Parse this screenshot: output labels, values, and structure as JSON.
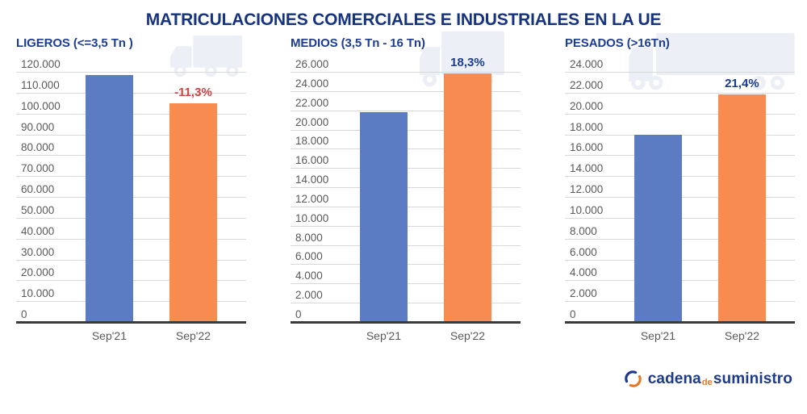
{
  "page": {
    "title": "MATRICULACIONES COMERCIALES E INDUSTRIALES EN LA UE"
  },
  "colors": {
    "bar_sep21": "#5b7cc2",
    "bar_sep22": "#f78b50",
    "title_navy": "#16337f",
    "subtitle_navy": "#1d3c94",
    "pct_negative": "#cf4143",
    "pct_positive": "#1b3d91",
    "tick_gray": "#595959",
    "gridline": "#d9d9d9",
    "axis": "#3a3a3a",
    "truck": "#edeff7",
    "logo_navy": "#1d3a8c",
    "logo_orange": "#e87722"
  },
  "chart_data": [
    {
      "type": "bar",
      "title": "LIGEROS (<=3,5 Tn )",
      "categories": [
        "Sep'21",
        "Sep'22"
      ],
      "values": [
        118500,
        105100
      ],
      "change_label": "-11,3%",
      "change_positive": false,
      "ylim": [
        0,
        120000
      ],
      "ystep": 10000,
      "grid": true,
      "truck_icon": "light-truck"
    },
    {
      "type": "bar",
      "title": "MEDIOS (3,5 Tn - 16 Tn)",
      "categories": [
        "Sep'21",
        "Sep'22"
      ],
      "values": [
        21800,
        25800
      ],
      "change_label": "18,3%",
      "change_positive": true,
      "ylim": [
        0,
        26000
      ],
      "ystep": 2000,
      "grid": true,
      "truck_icon": "medium-truck"
    },
    {
      "type": "bar",
      "title": "PESADOS (>16Tn)",
      "categories": [
        "Sep'21",
        "Sep'22"
      ],
      "values": [
        18000,
        21850
      ],
      "change_label": "21,4%",
      "change_positive": true,
      "ylim": [
        0,
        24000
      ],
      "ystep": 2000,
      "grid": true,
      "truck_icon": "heavy-truck"
    }
  ],
  "footer": {
    "logo": {
      "word1": "cadena",
      "word2": "de",
      "word3": "suministro"
    }
  }
}
